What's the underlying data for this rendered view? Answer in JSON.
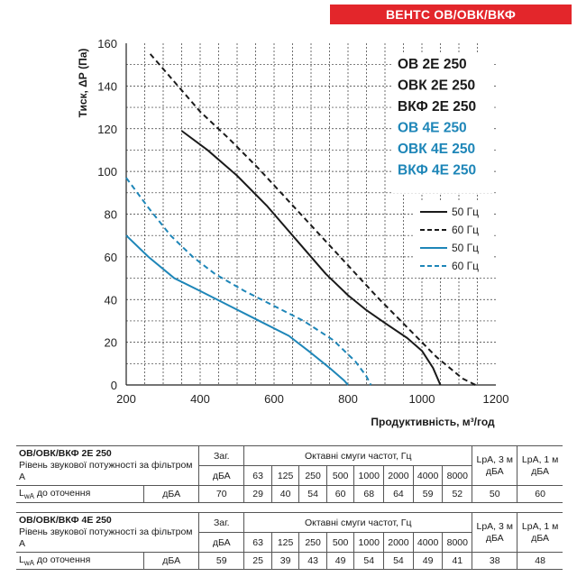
{
  "brand": "ВЕНТС ОВ/ОВК/ВКФ",
  "chart_data": {
    "type": "line",
    "xlabel": "Продуктивність, м³/год",
    "ylabel": "Тиск, ΔР (Па)",
    "xlim": [
      200,
      1200
    ],
    "ylim": [
      0,
      160
    ],
    "x_ticks": [
      "200",
      "400",
      "600",
      "800",
      "1000",
      "1200"
    ],
    "y_ticks": [
      "0",
      "20",
      "40",
      "60",
      "80",
      "100",
      "120",
      "140",
      "160"
    ],
    "grid": "dashed",
    "model_labels": [
      {
        "text": "ОВ 2Е 250",
        "color": "#1a1a1a"
      },
      {
        "text": "ОВК 2Е 250",
        "color": "#1a1a1a"
      },
      {
        "text": "ВКФ 2Е 250",
        "color": "#1a1a1a"
      },
      {
        "text": "ОВ 4Е 250",
        "color": "#1e86b8"
      },
      {
        "text": "ОВК 4Е 250",
        "color": "#1e86b8"
      },
      {
        "text": "ВКФ 4Е 250",
        "color": "#1e86b8"
      }
    ],
    "legend_position": "right",
    "series": [
      {
        "name": "50 Гц",
        "color": "#1a1a1a",
        "dash": "solid",
        "points": [
          [
            350,
            119
          ],
          [
            420,
            110
          ],
          [
            500,
            98
          ],
          [
            580,
            84
          ],
          [
            660,
            68
          ],
          [
            740,
            52
          ],
          [
            800,
            42
          ],
          [
            850,
            35
          ],
          [
            900,
            29
          ],
          [
            960,
            22
          ],
          [
            1000,
            16
          ],
          [
            1030,
            8
          ],
          [
            1050,
            0
          ]
        ]
      },
      {
        "name": "60 Гц",
        "color": "#1a1a1a",
        "dash": "dashed",
        "points": [
          [
            265,
            155
          ],
          [
            330,
            142
          ],
          [
            400,
            128
          ],
          [
            480,
            115
          ],
          [
            560,
            101
          ],
          [
            640,
            86
          ],
          [
            720,
            71
          ],
          [
            800,
            56
          ],
          [
            880,
            41
          ],
          [
            960,
            27
          ],
          [
            1040,
            13
          ],
          [
            1110,
            3
          ],
          [
            1145,
            0
          ]
        ]
      },
      {
        "name": "50 Гц",
        "color": "#1e86b8",
        "dash": "solid",
        "points": [
          [
            200,
            70
          ],
          [
            260,
            60
          ],
          [
            330,
            50
          ],
          [
            400,
            44
          ],
          [
            480,
            37
          ],
          [
            560,
            30
          ],
          [
            640,
            23
          ],
          [
            700,
            15
          ],
          [
            750,
            8
          ],
          [
            790,
            2
          ],
          [
            800,
            0
          ]
        ]
      },
      {
        "name": "60 Гц",
        "color": "#1e86b8",
        "dash": "dashed",
        "points": [
          [
            200,
            97
          ],
          [
            260,
            83
          ],
          [
            320,
            70
          ],
          [
            380,
            60
          ],
          [
            440,
            52
          ],
          [
            520,
            44
          ],
          [
            600,
            37
          ],
          [
            680,
            30
          ],
          [
            760,
            21
          ],
          [
            820,
            11
          ],
          [
            850,
            4
          ],
          [
            862,
            0
          ]
        ]
      }
    ]
  },
  "tables": [
    {
      "title": "ОВ/ОВК/ВКФ 2Е 250",
      "subtitle": "Рівень звукової потужності за фільтром А",
      "col_total": "Заг.",
      "col_bands": "Октавні смуги частот, Гц",
      "col_lpa3": "LpA, 3 м дБА",
      "col_lpa1": "LpA, 1 м дБА",
      "unit": "дБА",
      "freqs": [
        "63",
        "125",
        "250",
        "500",
        "1000",
        "2000",
        "4000",
        "8000"
      ],
      "row_label": "до оточення",
      "row_label_prefix": "L",
      "row_label_sub": "wA",
      "row_unit": "дБА",
      "total": "70",
      "values": [
        "29",
        "40",
        "54",
        "60",
        "68",
        "64",
        "59",
        "52"
      ],
      "lpa3": "50",
      "lpa1": "60"
    },
    {
      "title": "ОВ/ОВК/ВКФ 4Е 250",
      "subtitle": "Рівень звукової потужності за фільтром А",
      "col_total": "Заг.",
      "col_bands": "Октавні смуги частот, Гц",
      "col_lpa3": "LpA, 3 м дБА",
      "col_lpa1": "LpA, 1 м дБА",
      "unit": "дБА",
      "freqs": [
        "63",
        "125",
        "250",
        "500",
        "1000",
        "2000",
        "4000",
        "8000"
      ],
      "row_label": "до оточення",
      "row_label_prefix": "L",
      "row_label_sub": "wA",
      "row_unit": "дБА",
      "total": "59",
      "values": [
        "25",
        "39",
        "43",
        "49",
        "54",
        "54",
        "49",
        "41"
      ],
      "lpa3": "38",
      "lpa1": "48"
    }
  ]
}
